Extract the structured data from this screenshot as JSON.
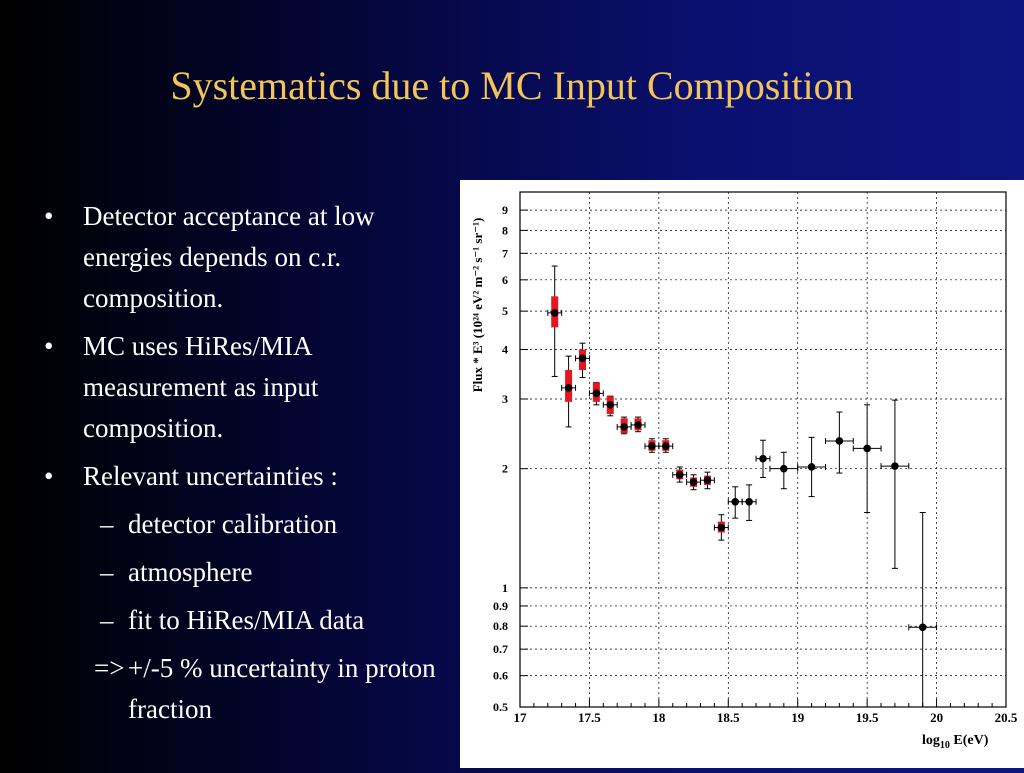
{
  "slide": {
    "title": "Systematics due to MC Input Composition",
    "bullets": [
      {
        "text": "Detector acceptance at low energies depends on c.r. composition."
      },
      {
        "text": "MC uses HiRes/MIA measurement as input composition."
      },
      {
        "text": "Relevant uncertainties :"
      }
    ],
    "sub_bullets": [
      "detector calibration",
      "atmosphere",
      "fit to HiRes/MIA data"
    ],
    "conclusion": {
      "arrow": "=>",
      "text": "+/-5 %  uncertainty in proton fraction"
    }
  },
  "colors": {
    "title": "#f2c45a",
    "red_marker": "#e8141e",
    "black_marker": "#000000"
  },
  "chart_data": {
    "type": "scatter",
    "title": "",
    "xlabel_main": "log",
    "xlabel_sub": "10",
    "xlabel_tail": " E(eV)",
    "ylabel": "Flux * E³ (10²⁴ eV² m⁻² s⁻¹ sr⁻¹)",
    "yscale": "log",
    "xlim": [
      17,
      20.5
    ],
    "ylim": [
      0.5,
      10
    ],
    "x_ticks": [
      17,
      17.5,
      18,
      18.5,
      19,
      19.5,
      20,
      20.5
    ],
    "x_tick_labels": [
      "17",
      "17.5",
      "18",
      "18.5",
      "19",
      "19.5",
      "20",
      "20.5"
    ],
    "y_ticks": [
      0.5,
      0.6,
      0.7,
      0.8,
      0.9,
      1,
      2,
      3,
      4,
      5,
      6,
      7,
      8,
      9
    ],
    "y_tick_labels": [
      "0.5",
      "0.6",
      "0.7",
      "0.8",
      "0.9",
      "1",
      "2",
      "3",
      "4",
      "5",
      "6",
      "7",
      "8",
      "9"
    ],
    "series": [
      {
        "name": "red",
        "points": [
          {
            "x": 17.25,
            "y": 4.95,
            "ylo": 3.42,
            "yhi": 6.5,
            "xerr": 0.05,
            "syslo": 4.55,
            "syshi": 5.45
          },
          {
            "x": 17.35,
            "y": 3.2,
            "ylo": 2.55,
            "yhi": 3.85,
            "xerr": 0.05,
            "syslo": 2.95,
            "syshi": 3.55
          },
          {
            "x": 17.45,
            "y": 3.8,
            "ylo": 3.4,
            "yhi": 4.15,
            "xerr": 0.05,
            "syslo": 3.55,
            "syshi": 4.0
          },
          {
            "x": 17.55,
            "y": 3.1,
            "ylo": 2.9,
            "yhi": 3.3,
            "xerr": 0.05,
            "syslo": 2.95,
            "syshi": 3.3
          },
          {
            "x": 17.65,
            "y": 2.9,
            "ylo": 2.72,
            "yhi": 3.05,
            "xerr": 0.05,
            "syslo": 2.75,
            "syshi": 3.05
          },
          {
            "x": 17.75,
            "y": 2.55,
            "ylo": 2.45,
            "yhi": 2.7,
            "xerr": 0.05,
            "syslo": 2.46,
            "syshi": 2.68
          },
          {
            "x": 17.85,
            "y": 2.58,
            "ylo": 2.48,
            "yhi": 2.7,
            "xerr": 0.05,
            "syslo": 2.5,
            "syshi": 2.68
          },
          {
            "x": 17.95,
            "y": 2.28,
            "ylo": 2.2,
            "yhi": 2.38,
            "xerr": 0.05,
            "syslo": 2.22,
            "syshi": 2.36
          },
          {
            "x": 18.05,
            "y": 2.28,
            "ylo": 2.2,
            "yhi": 2.38,
            "xerr": 0.05,
            "syslo": 2.22,
            "syshi": 2.36
          },
          {
            "x": 18.15,
            "y": 1.93,
            "ylo": 1.85,
            "yhi": 2.02,
            "xerr": 0.05,
            "syslo": 1.88,
            "syshi": 1.99
          },
          {
            "x": 18.25,
            "y": 1.85,
            "ylo": 1.77,
            "yhi": 1.93,
            "xerr": 0.05,
            "syslo": 1.8,
            "syshi": 1.9
          },
          {
            "x": 18.35,
            "y": 1.87,
            "ylo": 1.78,
            "yhi": 1.96,
            "xerr": 0.05,
            "syslo": 1.82,
            "syshi": 1.92
          },
          {
            "x": 18.45,
            "y": 1.42,
            "ylo": 1.32,
            "yhi": 1.53,
            "xerr": 0.05,
            "syslo": 1.38,
            "syshi": 1.47
          }
        ]
      },
      {
        "name": "black",
        "points": [
          {
            "x": 18.55,
            "y": 1.65,
            "ylo": 1.5,
            "yhi": 1.8,
            "xerr": 0.05
          },
          {
            "x": 18.65,
            "y": 1.65,
            "ylo": 1.48,
            "yhi": 1.82,
            "xerr": 0.05
          },
          {
            "x": 18.75,
            "y": 2.12,
            "ylo": 1.9,
            "yhi": 2.36,
            "xerr": 0.05
          },
          {
            "x": 18.9,
            "y": 2.0,
            "ylo": 1.78,
            "yhi": 2.2,
            "xerr": 0.1
          },
          {
            "x": 19.1,
            "y": 2.02,
            "ylo": 1.7,
            "yhi": 2.4,
            "xerr": 0.1
          },
          {
            "x": 19.3,
            "y": 2.35,
            "ylo": 1.95,
            "yhi": 2.78,
            "xerr": 0.1
          },
          {
            "x": 19.5,
            "y": 2.25,
            "ylo": 1.55,
            "yhi": 2.9,
            "xerr": 0.1
          },
          {
            "x": 19.7,
            "y": 2.03,
            "ylo": 1.12,
            "yhi": 2.98,
            "xerr": 0.1
          },
          {
            "x": 19.9,
            "y": 0.795,
            "ylo": 0.5,
            "yhi": 1.55,
            "xerr": 0.1
          }
        ]
      }
    ]
  }
}
